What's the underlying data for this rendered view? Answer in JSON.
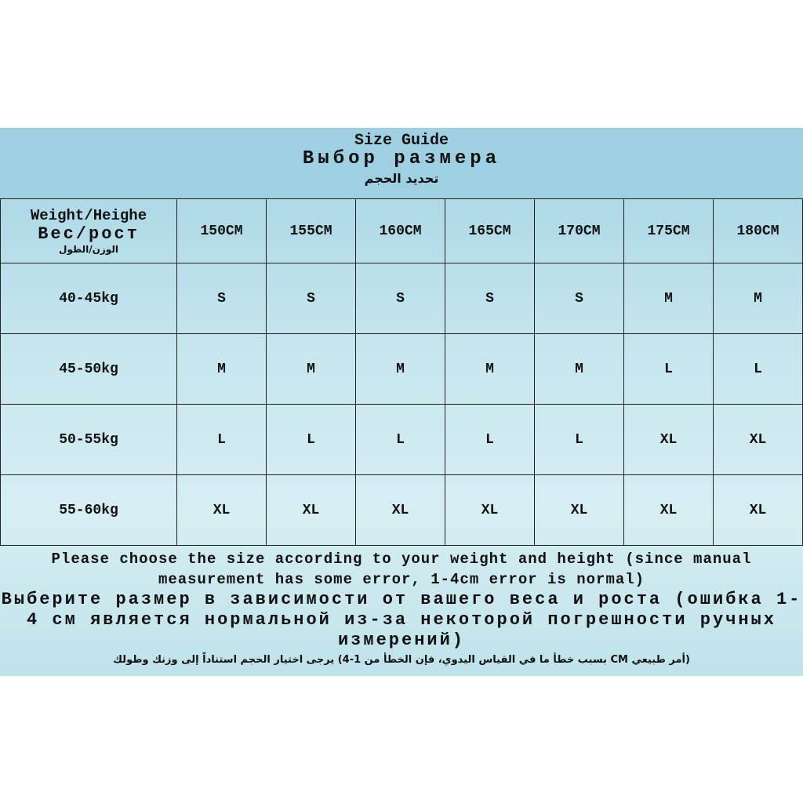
{
  "header": {
    "title_en": "Size Guide",
    "title_ru": "Выбор размера",
    "title_ar": "تحديد الحجم"
  },
  "table": {
    "corner": {
      "en": "Weight/Heighe",
      "ru": "Вес/рост",
      "ar": "الوزن/الطول"
    },
    "columns": [
      "150CM",
      "155CM",
      "160CM",
      "165CM",
      "170CM",
      "175CM",
      "180CM"
    ],
    "rows": [
      {
        "weight": "40-45kg",
        "sizes": [
          "S",
          "S",
          "S",
          "S",
          "S",
          "M",
          "M"
        ]
      },
      {
        "weight": "45-50kg",
        "sizes": [
          "M",
          "M",
          "M",
          "M",
          "M",
          "L",
          "L"
        ]
      },
      {
        "weight": "50-55kg",
        "sizes": [
          "L",
          "L",
          "L",
          "L",
          "L",
          "XL",
          "XL"
        ]
      },
      {
        "weight": "55-60kg",
        "sizes": [
          "XL",
          "XL",
          "XL",
          "XL",
          "XL",
          "XL",
          "XL"
        ]
      }
    ]
  },
  "footer": {
    "en": "Please choose the size according to your weight and height (since manual measurement has some error, 1-4cm error is normal)",
    "ru": "Выберите размер в зависимости от вашего веса и роста (ошибка 1-4 см является нормальной из-за некоторой погрешности ручных измерений)",
    "ar": "(أمر طبيعي CM بسبب خطأ ما في القياس اليدوي، فإن الخطأ من 1-4) يرجى اختيار الحجم استناداً إلى وزنك وطولك"
  }
}
